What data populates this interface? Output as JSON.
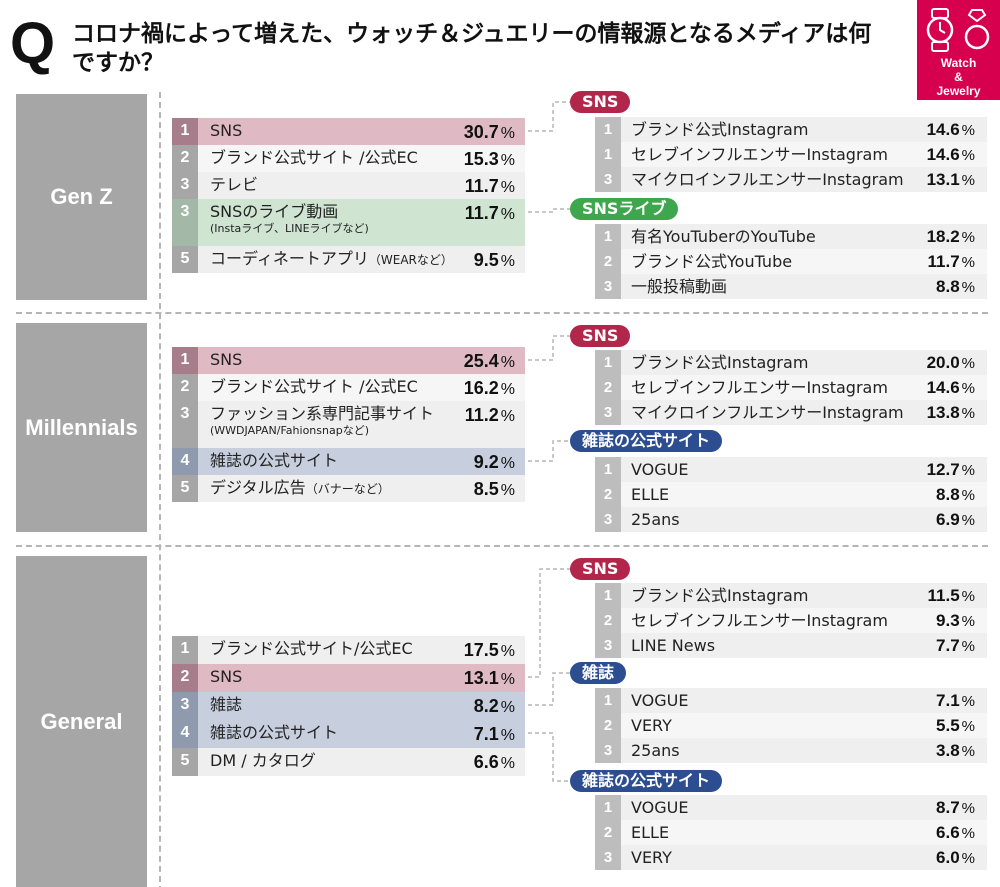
{
  "header": {
    "q_mark": "Q",
    "question": "コロナ禍によって増えた、ウォッチ＆ジュエリーの情報源となるメディアは何ですか？",
    "badge": {
      "lines": [
        "Watch",
        "&",
        "Jewelry"
      ],
      "color": "#d6004f",
      "icons": [
        "watch-icon",
        "ring-icon"
      ]
    }
  },
  "unit": "%",
  "colors": {
    "default_row": "#efefef",
    "default_row_alt": "#f6f6f6",
    "sns": "#dfbac5",
    "sns_rank": "#a77d8b",
    "live": "#cfe5d2",
    "live_rank": "#a3b8a6",
    "magazine": "#c7cfde",
    "magazine_rank": "#8f9aae",
    "pill_sns": "#b3264c",
    "pill_live": "#3ea64c",
    "pill_magazine": "#2c4d8f"
  },
  "sections": [
    {
      "label": "Gen Z",
      "rows": [
        {
          "rank": "1",
          "label": "SNS",
          "value": "30.7",
          "hl": "sns"
        },
        {
          "rank": "2",
          "label": "ブランド公式サイト /公式EC",
          "value": "15.3"
        },
        {
          "rank": "3",
          "label": "テレビ",
          "value": "11.7"
        },
        {
          "rank": "3",
          "label": "SNSのライブ動画",
          "sub": "(Instaライブ、LINEライブなど)",
          "value": "11.7",
          "hl": "live"
        },
        {
          "rank": "5",
          "label": "コーディネートアプリ",
          "note": "（WEARなど）",
          "value": "9.5"
        }
      ],
      "details": [
        {
          "tag": "SNS",
          "kind": "sns",
          "rows": [
            {
              "rank": "1",
              "label": "ブランド公式Instagram",
              "value": "14.6"
            },
            {
              "rank": "1",
              "label": "セレブインフルエンサーInstagram",
              "value": "14.6"
            },
            {
              "rank": "3",
              "label": "マイクロインフルエンサーInstagram",
              "value": "13.1"
            }
          ]
        },
        {
          "tag": "SNSライブ",
          "kind": "live",
          "rows": [
            {
              "rank": "1",
              "label": "有名YouTuberのYouTube",
              "value": "18.2"
            },
            {
              "rank": "2",
              "label": "ブランド公式YouTube",
              "value": "11.7"
            },
            {
              "rank": "3",
              "label": "一般投稿動画",
              "value": "8.8"
            }
          ]
        }
      ]
    },
    {
      "label": "Millennials",
      "rows": [
        {
          "rank": "1",
          "label": "SNS",
          "value": "25.4",
          "hl": "sns"
        },
        {
          "rank": "2",
          "label": "ブランド公式サイト /公式EC",
          "value": "16.2"
        },
        {
          "rank": "3",
          "label": "ファッション系専門記事サイト",
          "sub": "(WWDJAPAN/Fahionsnapなど)",
          "value": "11.2"
        },
        {
          "rank": "4",
          "label": "雑誌の公式サイト",
          "value": "9.2",
          "hl": "magazine"
        },
        {
          "rank": "5",
          "label": "デジタル広告",
          "note": "（バナーなど）",
          "value": "8.5"
        }
      ],
      "details": [
        {
          "tag": "SNS",
          "kind": "sns",
          "rows": [
            {
              "rank": "1",
              "label": "ブランド公式Instagram",
              "value": "20.0"
            },
            {
              "rank": "2",
              "label": "セレブインフルエンサーInstagram",
              "value": "14.6"
            },
            {
              "rank": "3",
              "label": "マイクロインフルエンサーInstagram",
              "value": "13.8"
            }
          ]
        },
        {
          "tag": "雑誌の公式サイト",
          "kind": "magazine",
          "rows": [
            {
              "rank": "1",
              "label": "VOGUE",
              "value": "12.7"
            },
            {
              "rank": "2",
              "label": "ELLE",
              "value": "8.8"
            },
            {
              "rank": "3",
              "label": "25ans",
              "value": "6.9"
            }
          ]
        }
      ]
    },
    {
      "label": "General",
      "rows": [
        {
          "rank": "1",
          "label": "ブランド公式サイト/公式EC",
          "value": "17.5"
        },
        {
          "rank": "2",
          "label": "SNS",
          "value": "13.1",
          "hl": "sns"
        },
        {
          "rank": "3",
          "label": "雑誌",
          "value": "8.2",
          "hl": "magazine"
        },
        {
          "rank": "4",
          "label": "雑誌の公式サイト",
          "value": "7.1",
          "hl": "magazine"
        },
        {
          "rank": "5",
          "label": "DM / カタログ",
          "value": "6.6"
        }
      ],
      "details": [
        {
          "tag": "SNS",
          "kind": "sns",
          "rows": [
            {
              "rank": "1",
              "label": "ブランド公式Instagram",
              "value": "11.5"
            },
            {
              "rank": "2",
              "label": "セレブインフルエンサーInstagram",
              "value": "9.3"
            },
            {
              "rank": "3",
              "label": "LINE News",
              "value": "7.7"
            }
          ]
        },
        {
          "tag": "雑誌",
          "kind": "magazine",
          "rows": [
            {
              "rank": "1",
              "label": "VOGUE",
              "value": "7.1"
            },
            {
              "rank": "2",
              "label": "VERY",
              "value": "5.5"
            },
            {
              "rank": "3",
              "label": "25ans",
              "value": "3.8"
            }
          ]
        },
        {
          "tag": "雑誌の公式サイト",
          "kind": "magazine",
          "rows": [
            {
              "rank": "1",
              "label": "VOGUE",
              "value": "8.7"
            },
            {
              "rank": "2",
              "label": "ELLE",
              "value": "6.6"
            },
            {
              "rank": "3",
              "label": "VERY",
              "value": "6.0"
            }
          ]
        }
      ]
    }
  ]
}
